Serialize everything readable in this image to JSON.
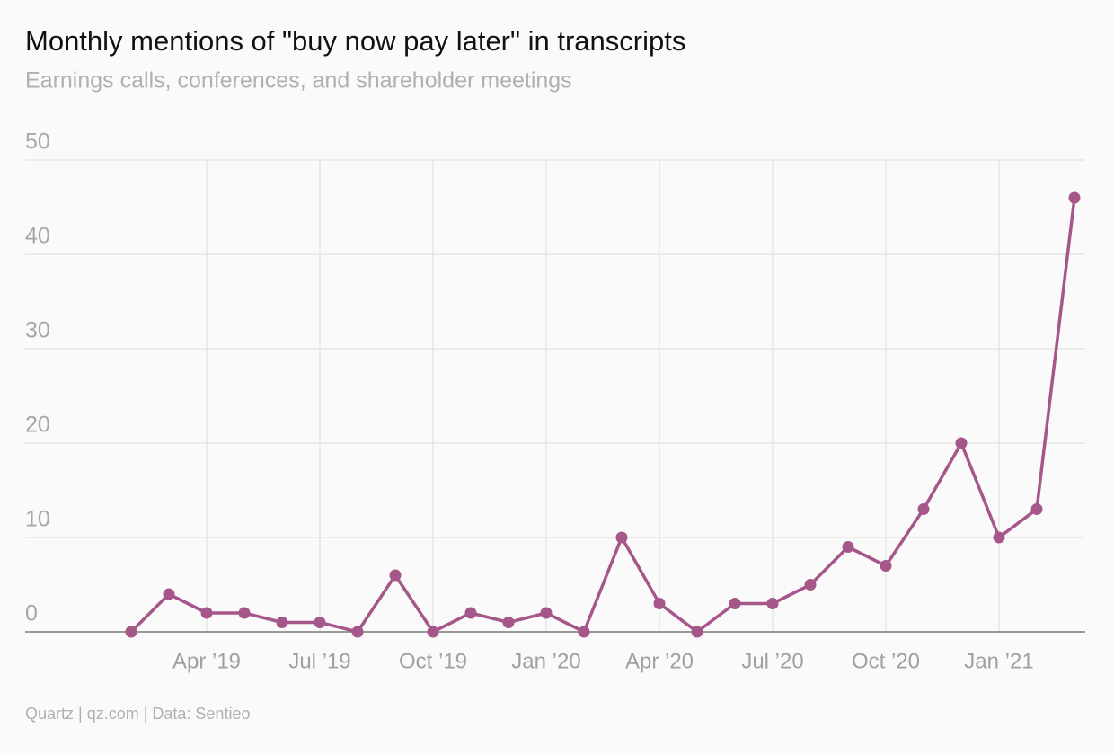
{
  "chart_data": {
    "type": "line",
    "title": "Monthly mentions of \"buy now pay later\" in transcripts",
    "subtitle": "Earnings calls, conferences, and shareholder meetings",
    "source": "Quartz | qz.com | Data: Sentieo",
    "categories": [
      null,
      null,
      "Apr ’19",
      null,
      null,
      "Jul ’19",
      null,
      null,
      "Oct ’19",
      null,
      null,
      "Jan ’20",
      null,
      null,
      "Apr ’20",
      null,
      null,
      "Jul ’20",
      null,
      null,
      "Oct ’20",
      null,
      null,
      "Jan ’21",
      null,
      null
    ],
    "values": [
      0,
      4,
      2,
      2,
      1,
      1,
      0,
      6,
      0,
      2,
      1,
      2,
      0,
      10,
      3,
      0,
      3,
      3,
      5,
      9,
      7,
      13,
      20,
      10,
      13,
      46
    ],
    "color": "#a5578a",
    "ylim": [
      0,
      50
    ],
    "yticks": [
      0,
      10,
      20,
      30,
      40,
      50
    ],
    "grid": true
  }
}
